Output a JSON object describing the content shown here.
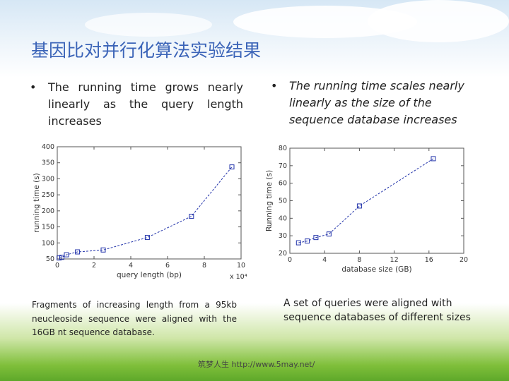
{
  "title": "基因比对并行化算法实验结果",
  "left_bullet": "The running time grows nearly linearly as the query length increases",
  "right_bullet": "The running time scales nearly linearly as the size of the sequence database increases",
  "left_caption": "Fragments of increasing length from a 95kb neucleoside sequence were aligned with the 16GB nt sequence database.",
  "right_caption": "A set of queries were aligned with sequence databases of different sizes",
  "footer": "筑梦人生 http://www.5may.net/",
  "chart_data": [
    {
      "type": "line",
      "xlabel": "query length (bp)",
      "ylabel": "running time (s)",
      "x_multiplier": "x 10⁴",
      "xlim": [
        0,
        10
      ],
      "ylim": [
        50,
        400
      ],
      "xticks": [
        0,
        2,
        4,
        6,
        8,
        10
      ],
      "yticks": [
        50,
        100,
        150,
        200,
        250,
        300,
        350,
        400
      ],
      "marker": "square",
      "color": "#2233aa",
      "series": [
        {
          "x": [
            0.1,
            0.25,
            0.5,
            1.1,
            2.5,
            4.9,
            7.3,
            9.5
          ],
          "y": [
            53,
            55,
            63,
            72,
            78,
            117,
            183,
            337
          ]
        }
      ]
    },
    {
      "type": "line",
      "xlabel": "database size (GB)",
      "ylabel": "Running time (s)",
      "xlim": [
        0,
        20
      ],
      "ylim": [
        20,
        80
      ],
      "xticks": [
        0,
        4,
        8,
        12,
        16,
        20
      ],
      "yticks": [
        20,
        30,
        40,
        50,
        60,
        70,
        80
      ],
      "marker": "square",
      "color": "#2233aa",
      "series": [
        {
          "x": [
            1,
            2,
            3,
            4.5,
            8,
            16.5
          ],
          "y": [
            26,
            27,
            29,
            31,
            47,
            74
          ]
        }
      ]
    }
  ]
}
